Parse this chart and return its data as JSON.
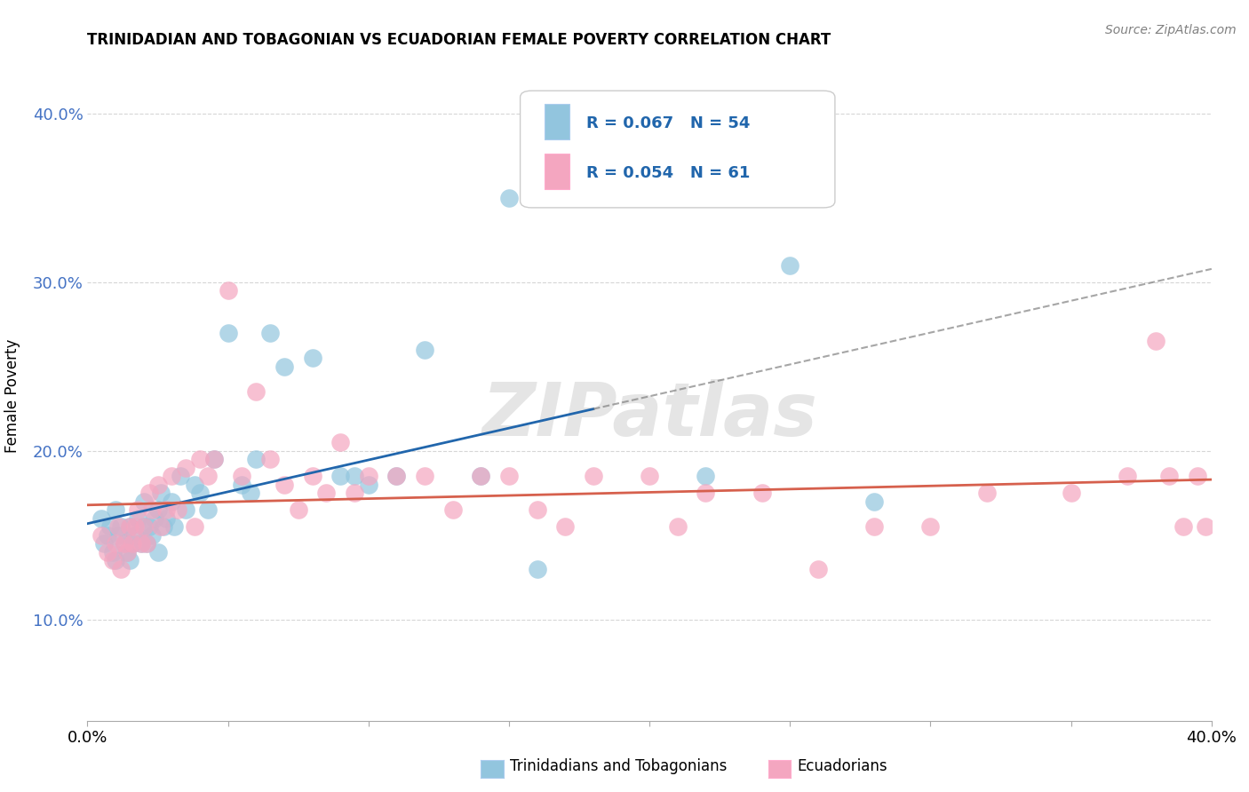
{
  "title": "TRINIDADIAN AND TOBAGONIAN VS ECUADORIAN FEMALE POVERTY CORRELATION CHART",
  "source": "Source: ZipAtlas.com",
  "ylabel": "Female Poverty",
  "xlim": [
    0.0,
    0.4
  ],
  "ylim": [
    0.04,
    0.425
  ],
  "yticks": [
    0.1,
    0.2,
    0.3,
    0.4
  ],
  "ytick_labels": [
    "10.0%",
    "20.0%",
    "30.0%",
    "40.0%"
  ],
  "xticks": [
    0.0,
    0.05,
    0.1,
    0.15,
    0.2,
    0.25,
    0.3,
    0.35,
    0.4
  ],
  "legend_r1": "R = 0.067   N = 54",
  "legend_r2": "R = 0.054   N = 61",
  "legend_label1": "Trinidadians and Tobagonians",
  "legend_label2": "Ecuadorians",
  "color_blue": "#92c5de",
  "color_pink": "#f4a6c0",
  "color_blue_line": "#2166ac",
  "color_pink_line": "#d6604d",
  "color_legend_text": "#2166ac",
  "color_ytick": "#4472c4",
  "watermark": "ZIPatlas",
  "blue_x": [
    0.005,
    0.006,
    0.007,
    0.008,
    0.009,
    0.01,
    0.01,
    0.011,
    0.012,
    0.013,
    0.014,
    0.015,
    0.015,
    0.016,
    0.017,
    0.018,
    0.019,
    0.02,
    0.02,
    0.021,
    0.022,
    0.023,
    0.024,
    0.025,
    0.025,
    0.026,
    0.027,
    0.028,
    0.03,
    0.031,
    0.033,
    0.035,
    0.038,
    0.04,
    0.043,
    0.045,
    0.05,
    0.055,
    0.058,
    0.06,
    0.065,
    0.07,
    0.08,
    0.09,
    0.095,
    0.1,
    0.11,
    0.12,
    0.14,
    0.15,
    0.16,
    0.22,
    0.25,
    0.28
  ],
  "blue_y": [
    0.16,
    0.145,
    0.15,
    0.155,
    0.14,
    0.165,
    0.135,
    0.15,
    0.155,
    0.145,
    0.14,
    0.135,
    0.155,
    0.145,
    0.15,
    0.16,
    0.145,
    0.155,
    0.17,
    0.145,
    0.155,
    0.15,
    0.16,
    0.165,
    0.14,
    0.175,
    0.155,
    0.16,
    0.17,
    0.155,
    0.185,
    0.165,
    0.18,
    0.175,
    0.165,
    0.195,
    0.27,
    0.18,
    0.175,
    0.195,
    0.27,
    0.25,
    0.255,
    0.185,
    0.185,
    0.18,
    0.185,
    0.26,
    0.185,
    0.35,
    0.13,
    0.185,
    0.31,
    0.17
  ],
  "pink_x": [
    0.005,
    0.007,
    0.009,
    0.01,
    0.011,
    0.012,
    0.013,
    0.014,
    0.015,
    0.016,
    0.017,
    0.018,
    0.019,
    0.02,
    0.021,
    0.022,
    0.023,
    0.025,
    0.026,
    0.028,
    0.03,
    0.032,
    0.035,
    0.038,
    0.04,
    0.043,
    0.045,
    0.05,
    0.055,
    0.06,
    0.065,
    0.07,
    0.075,
    0.08,
    0.085,
    0.09,
    0.095,
    0.1,
    0.11,
    0.12,
    0.13,
    0.14,
    0.15,
    0.16,
    0.17,
    0.18,
    0.2,
    0.21,
    0.22,
    0.24,
    0.26,
    0.28,
    0.3,
    0.32,
    0.35,
    0.37,
    0.38,
    0.385,
    0.39,
    0.395,
    0.398
  ],
  "pink_y": [
    0.15,
    0.14,
    0.135,
    0.145,
    0.155,
    0.13,
    0.145,
    0.14,
    0.155,
    0.145,
    0.155,
    0.165,
    0.145,
    0.155,
    0.145,
    0.175,
    0.165,
    0.18,
    0.155,
    0.165,
    0.185,
    0.165,
    0.19,
    0.155,
    0.195,
    0.185,
    0.195,
    0.295,
    0.185,
    0.235,
    0.195,
    0.18,
    0.165,
    0.185,
    0.175,
    0.205,
    0.175,
    0.185,
    0.185,
    0.185,
    0.165,
    0.185,
    0.185,
    0.165,
    0.155,
    0.185,
    0.185,
    0.155,
    0.175,
    0.175,
    0.13,
    0.155,
    0.155,
    0.175,
    0.175,
    0.185,
    0.265,
    0.185,
    0.155,
    0.185,
    0.155
  ]
}
